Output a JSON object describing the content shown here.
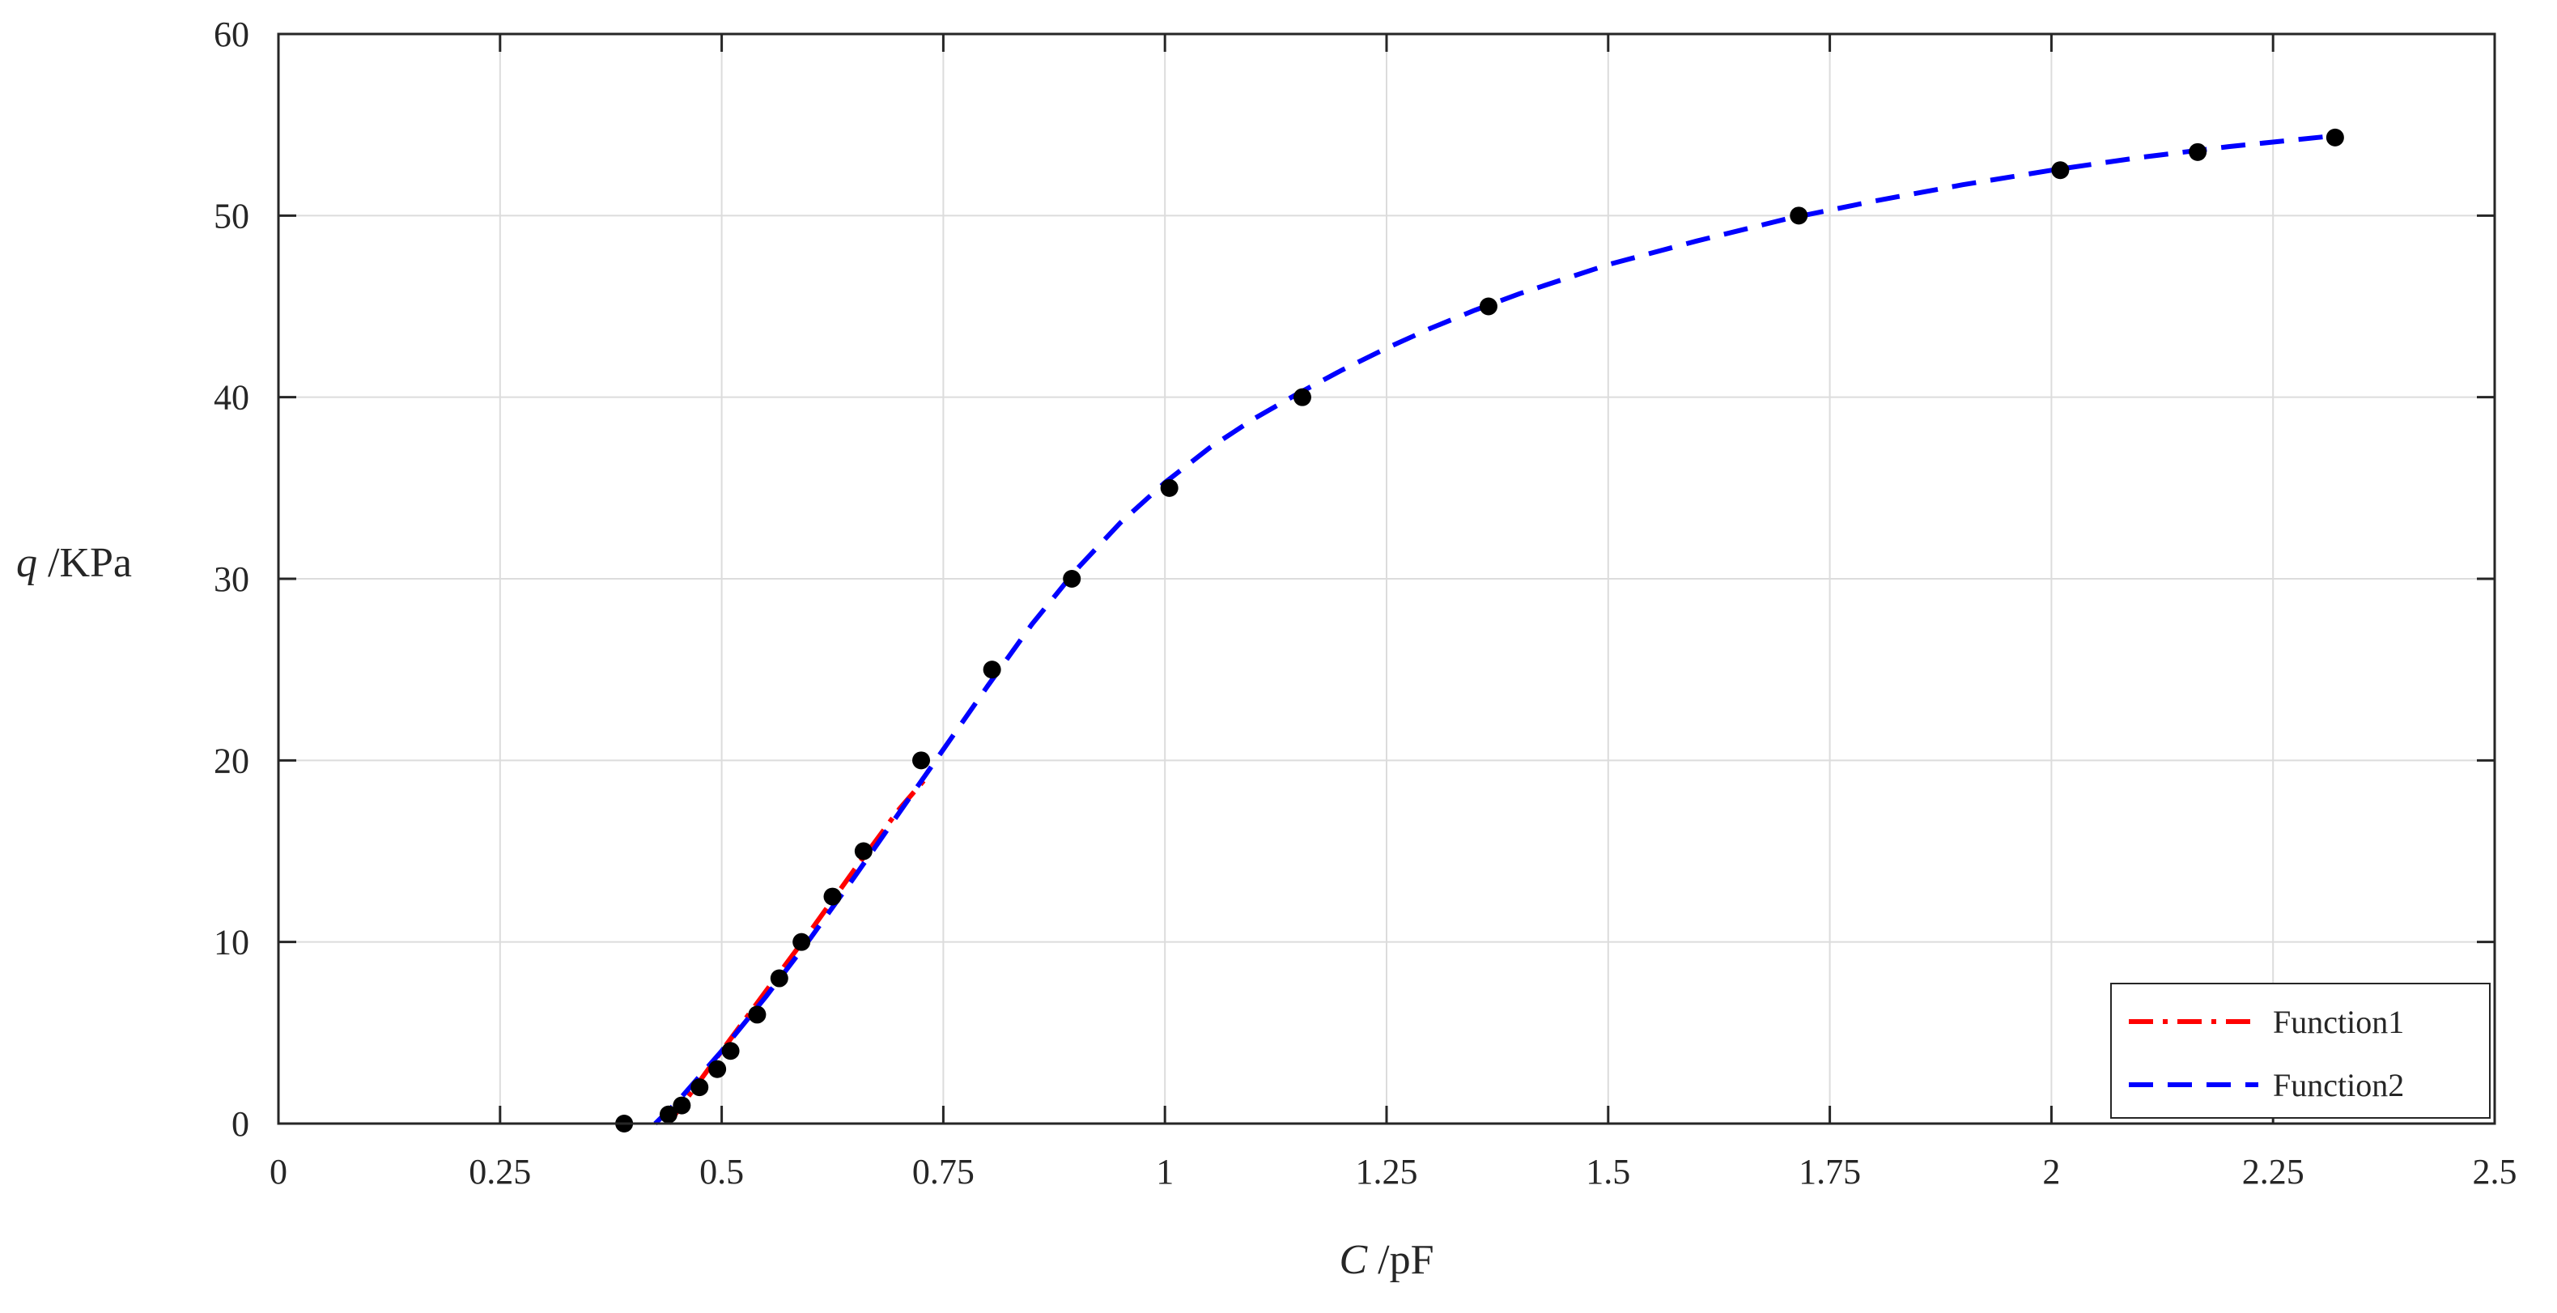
{
  "chart_data": {
    "type": "scatter",
    "xlabel_var": "C",
    "xlabel_unit": " /pF",
    "ylabel_var": "q",
    "ylabel_unit": " /KPa",
    "xlim": [
      0,
      2.5
    ],
    "ylim": [
      0,
      60
    ],
    "xticks": [
      0,
      0.25,
      0.5,
      0.75,
      1,
      1.25,
      1.5,
      1.75,
      2,
      2.25,
      2.5
    ],
    "xtick_labels": [
      "0",
      "0.25",
      "0.5",
      "0.75",
      "1",
      "1.25",
      "1.5",
      "1.75",
      "2",
      "2.25",
      "2.5"
    ],
    "yticks": [
      0,
      10,
      20,
      30,
      40,
      50,
      60
    ],
    "ytick_labels": [
      "0",
      "10",
      "20",
      "30",
      "40",
      "50",
      "60"
    ],
    "grid": true,
    "legend_position": "bottom-right",
    "points": {
      "color": "#000000",
      "x": [
        0.39,
        0.44,
        0.455,
        0.475,
        0.495,
        0.51,
        0.54,
        0.565,
        0.59,
        0.625,
        0.66,
        0.725,
        0.805,
        0.895,
        1.005,
        1.155,
        1.365,
        1.715,
        2.01,
        2.165,
        2.32
      ],
      "y": [
        0,
        0.5,
        1,
        2,
        3,
        4,
        6,
        8,
        10,
        12.5,
        15,
        20,
        25,
        30,
        35,
        40,
        45,
        50,
        52.5,
        53.5,
        54.3
      ]
    },
    "series": [
      {
        "name": "Function1",
        "color": "#ff0000",
        "style": "dashdot",
        "x": [
          0.44,
          0.5,
          0.55,
          0.6,
          0.65,
          0.7,
          0.73
        ],
        "y": [
          0.0,
          4.0,
          7.3,
          10.6,
          14.0,
          17.3,
          19.0
        ]
      },
      {
        "name": "Function2",
        "color": "#0000ff",
        "style": "dashed",
        "x": [
          0.425,
          0.45,
          0.5,
          0.55,
          0.6,
          0.65,
          0.7,
          0.75,
          0.8,
          0.85,
          0.9,
          0.95,
          1.0,
          1.05,
          1.1,
          1.15,
          1.2,
          1.25,
          1.3,
          1.35,
          1.4,
          1.5,
          1.6,
          1.7,
          1.8,
          1.9,
          2.0,
          2.1,
          2.2,
          2.32
        ],
        "y": [
          0.0,
          1.2,
          4.0,
          7.0,
          10.2,
          13.6,
          17.1,
          20.6,
          24.1,
          27.5,
          30.5,
          33.1,
          35.3,
          37.2,
          38.8,
          40.2,
          41.5,
          42.7,
          43.8,
          44.8,
          45.7,
          47.3,
          48.6,
          49.8,
          50.8,
          51.7,
          52.5,
          53.2,
          53.8,
          54.4
        ]
      }
    ]
  }
}
